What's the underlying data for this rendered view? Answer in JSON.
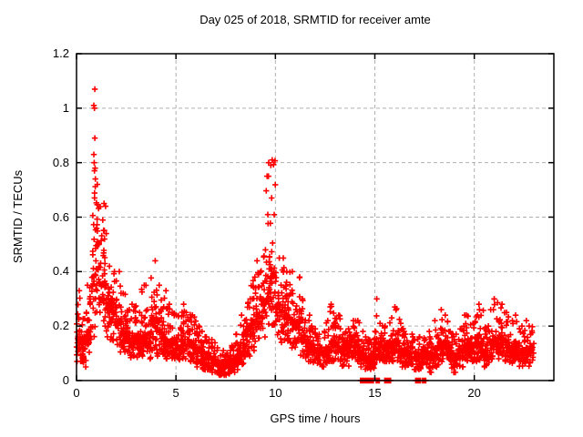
{
  "title": "Day 025 of 2018, SRMTID for receiver amte",
  "chart_data": {
    "type": "scatter",
    "title": "Day 025 of 2018, SRMTID for receiver amte",
    "xlabel": "GPS time / hours",
    "ylabel": "SRMTID / TECUs",
    "xlim": [
      0,
      24
    ],
    "ylim": [
      0,
      1.2
    ],
    "xticks": [
      0,
      5,
      10,
      15,
      20
    ],
    "xtick_labels": [
      "0",
      "5",
      "10",
      "15",
      "20"
    ],
    "yticks": [
      0,
      0.2,
      0.4,
      0.6,
      0.8,
      1.0,
      1.2
    ],
    "ytick_labels": [
      "0",
      "0.2",
      "0.4",
      "0.6",
      "0.8",
      "1",
      "1.2"
    ],
    "grid": true,
    "legend_position": "none",
    "marker": "plus",
    "marker_color": "#ff0000",
    "grid_color": "#b0b0b0",
    "axis_color": "#000000",
    "background_color": "#ffffff",
    "series_name": "SRMTID",
    "bin_width": 0.25,
    "points_per_bin": 26,
    "seed": 42,
    "bins_note": "each bin = [start_hour, y_min, y_mode, y_max] envelope of dense + scatter",
    "bins": [
      [
        0.0,
        0.07,
        0.15,
        0.33
      ],
      [
        0.25,
        0.05,
        0.13,
        0.25
      ],
      [
        0.5,
        0.1,
        0.18,
        0.35
      ],
      [
        0.75,
        0.15,
        0.38,
        0.78
      ],
      [
        1.0,
        0.25,
        0.5,
        0.72
      ],
      [
        1.25,
        0.2,
        0.35,
        0.65
      ],
      [
        1.5,
        0.15,
        0.28,
        0.42
      ],
      [
        1.75,
        0.13,
        0.25,
        0.4
      ],
      [
        2.0,
        0.1,
        0.22,
        0.4
      ],
      [
        2.25,
        0.1,
        0.18,
        0.32
      ],
      [
        2.5,
        0.08,
        0.15,
        0.26
      ],
      [
        2.75,
        0.09,
        0.15,
        0.28
      ],
      [
        3.0,
        0.08,
        0.14,
        0.25
      ],
      [
        3.25,
        0.09,
        0.16,
        0.35
      ],
      [
        3.5,
        0.08,
        0.14,
        0.26
      ],
      [
        3.75,
        0.1,
        0.22,
        0.44
      ],
      [
        4.0,
        0.09,
        0.18,
        0.35
      ],
      [
        4.25,
        0.09,
        0.16,
        0.33
      ],
      [
        4.5,
        0.08,
        0.14,
        0.28
      ],
      [
        4.75,
        0.08,
        0.14,
        0.25
      ],
      [
        5.0,
        0.07,
        0.13,
        0.24
      ],
      [
        5.25,
        0.08,
        0.15,
        0.28
      ],
      [
        5.5,
        0.07,
        0.13,
        0.25
      ],
      [
        5.75,
        0.07,
        0.13,
        0.24
      ],
      [
        6.0,
        0.05,
        0.11,
        0.2
      ],
      [
        6.25,
        0.04,
        0.1,
        0.18
      ],
      [
        6.5,
        0.04,
        0.09,
        0.16
      ],
      [
        6.75,
        0.03,
        0.08,
        0.15
      ],
      [
        7.0,
        0.02,
        0.06,
        0.12
      ],
      [
        7.25,
        0.02,
        0.05,
        0.11
      ],
      [
        7.5,
        0.02,
        0.06,
        0.11
      ],
      [
        7.75,
        0.03,
        0.07,
        0.13
      ],
      [
        8.0,
        0.04,
        0.09,
        0.17
      ],
      [
        8.25,
        0.06,
        0.12,
        0.24
      ],
      [
        8.5,
        0.09,
        0.17,
        0.3
      ],
      [
        8.75,
        0.11,
        0.21,
        0.38
      ],
      [
        9.0,
        0.14,
        0.25,
        0.44
      ],
      [
        9.25,
        0.16,
        0.28,
        0.48
      ],
      [
        9.5,
        0.2,
        0.38,
        0.75
      ],
      [
        9.75,
        0.2,
        0.4,
        0.81
      ],
      [
        10.0,
        0.16,
        0.28,
        0.45
      ],
      [
        10.25,
        0.14,
        0.26,
        0.45
      ],
      [
        10.5,
        0.13,
        0.24,
        0.4
      ],
      [
        10.75,
        0.11,
        0.22,
        0.4
      ],
      [
        11.0,
        0.11,
        0.2,
        0.38
      ],
      [
        11.25,
        0.09,
        0.16,
        0.3
      ],
      [
        11.5,
        0.07,
        0.14,
        0.24
      ],
      [
        11.75,
        0.06,
        0.11,
        0.2
      ],
      [
        12.0,
        0.05,
        0.11,
        0.19
      ],
      [
        12.25,
        0.05,
        0.1,
        0.18
      ],
      [
        12.5,
        0.06,
        0.12,
        0.22
      ],
      [
        12.75,
        0.07,
        0.14,
        0.28
      ],
      [
        13.0,
        0.07,
        0.13,
        0.24
      ],
      [
        13.25,
        0.05,
        0.11,
        0.19
      ],
      [
        13.5,
        0.05,
        0.11,
        0.19
      ],
      [
        13.75,
        0.07,
        0.13,
        0.22
      ],
      [
        14.0,
        0.07,
        0.12,
        0.22
      ],
      [
        14.25,
        0.05,
        0.1,
        0.18
      ],
      [
        14.5,
        0.04,
        0.09,
        0.16
      ],
      [
        14.75,
        0.04,
        0.09,
        0.15
      ],
      [
        15.0,
        0.07,
        0.14,
        0.3
      ],
      [
        15.25,
        0.07,
        0.13,
        0.21
      ],
      [
        15.5,
        0.07,
        0.12,
        0.2
      ],
      [
        15.75,
        0.07,
        0.13,
        0.23
      ],
      [
        16.0,
        0.07,
        0.14,
        0.27
      ],
      [
        16.25,
        0.05,
        0.11,
        0.21
      ],
      [
        16.5,
        0.05,
        0.1,
        0.17
      ],
      [
        16.75,
        0.04,
        0.1,
        0.17
      ],
      [
        17.0,
        0.04,
        0.09,
        0.16
      ],
      [
        17.25,
        0.04,
        0.09,
        0.16
      ],
      [
        17.5,
        0.04,
        0.1,
        0.18
      ],
      [
        17.75,
        0.03,
        0.09,
        0.16
      ],
      [
        18.0,
        0.05,
        0.12,
        0.22
      ],
      [
        18.25,
        0.07,
        0.14,
        0.26
      ],
      [
        18.5,
        0.07,
        0.13,
        0.24
      ],
      [
        18.75,
        0.04,
        0.1,
        0.18
      ],
      [
        19.0,
        0.03,
        0.09,
        0.17
      ],
      [
        19.25,
        0.05,
        0.11,
        0.2
      ],
      [
        19.5,
        0.07,
        0.13,
        0.24
      ],
      [
        19.75,
        0.07,
        0.12,
        0.21
      ],
      [
        20.0,
        0.07,
        0.14,
        0.28
      ],
      [
        20.25,
        0.07,
        0.13,
        0.26
      ],
      [
        20.5,
        0.05,
        0.11,
        0.2
      ],
      [
        20.75,
        0.07,
        0.14,
        0.26
      ],
      [
        21.0,
        0.08,
        0.15,
        0.3
      ],
      [
        21.25,
        0.09,
        0.15,
        0.28
      ],
      [
        21.5,
        0.07,
        0.13,
        0.25
      ],
      [
        21.75,
        0.06,
        0.12,
        0.22
      ],
      [
        22.0,
        0.07,
        0.13,
        0.24
      ],
      [
        22.25,
        0.05,
        0.11,
        0.2
      ],
      [
        22.5,
        0.05,
        0.11,
        0.22
      ],
      [
        22.75,
        0.06,
        0.12,
        0.2
      ]
    ],
    "outliers": [
      [
        0.92,
        1.07
      ],
      [
        0.87,
        1.01
      ],
      [
        0.9,
        1.0
      ],
      [
        0.92,
        0.89
      ],
      [
        0.87,
        0.83
      ],
      [
        0.89,
        0.8
      ],
      [
        0.9,
        0.77
      ],
      [
        0.95,
        0.74
      ],
      [
        9.66,
        0.8
      ],
      [
        9.58,
        0.75
      ],
      [
        18.97,
        0.03
      ],
      [
        19.05,
        0.03
      ]
    ],
    "zero_value_segments": [
      [
        14.28,
        14.93
      ],
      [
        15.07,
        15.23
      ],
      [
        15.5,
        15.65
      ],
      [
        15.7,
        15.8
      ],
      [
        17.05,
        17.3
      ],
      [
        17.4,
        17.57
      ]
    ],
    "data_end_hour": 23.0
  }
}
